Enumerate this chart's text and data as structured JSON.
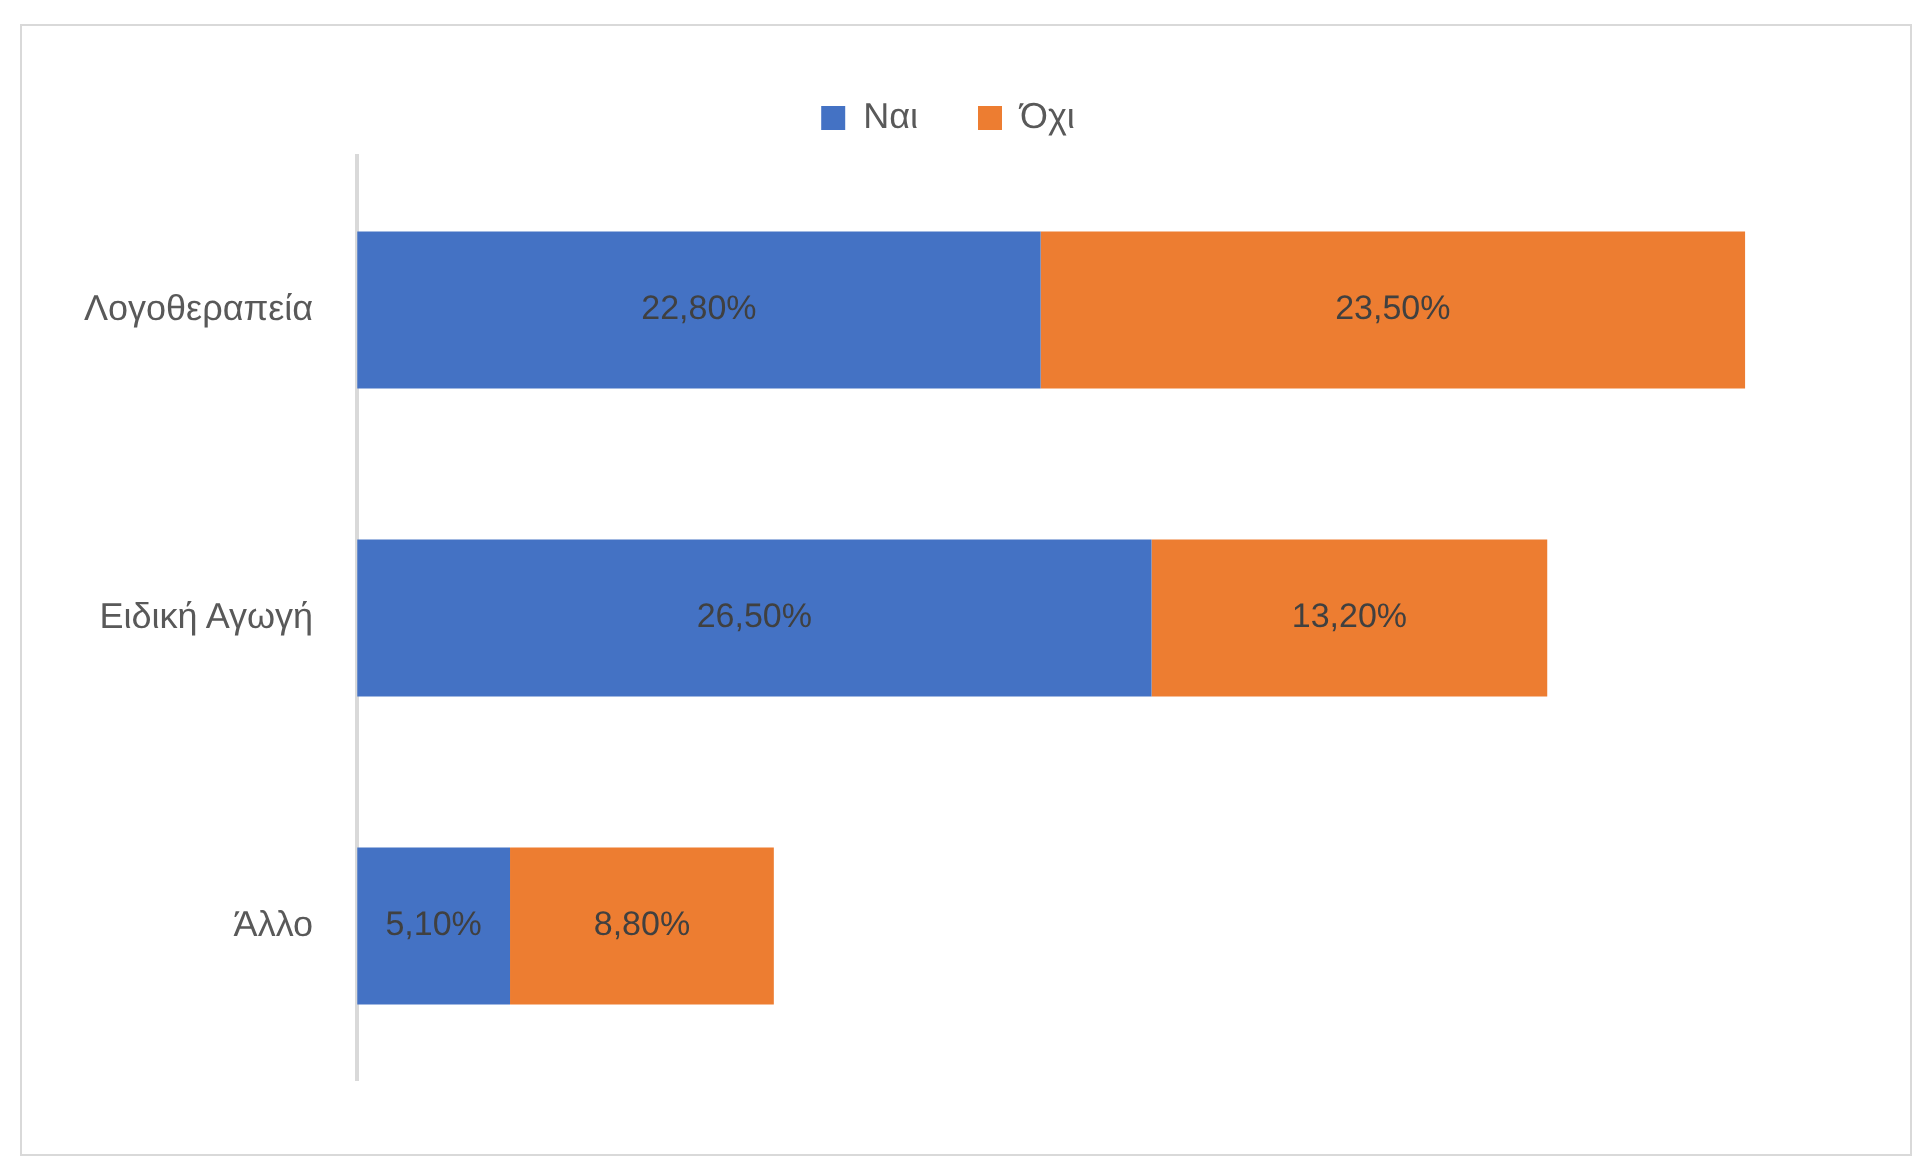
{
  "chart_data": {
    "type": "bar",
    "orientation": "horizontal",
    "stacked": true,
    "legend": "top",
    "grid": false,
    "categories": [
      "Λογοθεραπεία",
      "Ειδική Αγωγή",
      "Άλλο"
    ],
    "series": [
      {
        "name": "Ναι",
        "color": "#4472c4",
        "values": [
          22.8,
          26.5,
          5.1
        ],
        "value_labels": [
          "22,80%",
          "26,50%",
          "5,10%"
        ]
      },
      {
        "name": "Όχι",
        "color": "#ed7d31",
        "values": [
          23.5,
          13.2,
          8.8
        ],
        "value_labels": [
          "23,50%",
          "13,20%",
          "8,80%"
        ]
      }
    ]
  }
}
